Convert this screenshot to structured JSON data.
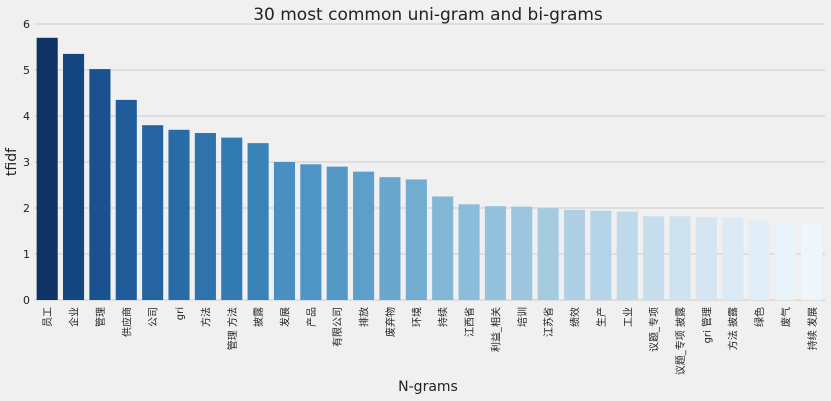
{
  "chart_data": {
    "type": "bar",
    "title": "30 most common uni-gram and bi-grams",
    "xlabel": "N-grams",
    "ylabel": "tfidf",
    "ylim": [
      0,
      6
    ],
    "yticks": [
      0,
      1,
      2,
      3,
      4,
      5,
      6
    ],
    "grid": true,
    "categories": [
      "员工",
      "企业",
      "管理",
      "供应商",
      "公司",
      "gri",
      "方法",
      "管理 方法",
      "披露",
      "发展",
      "产品",
      "有限公司",
      "排放",
      "废弃物",
      "环境",
      "持续",
      "江西省",
      "利益_相关",
      "培训",
      "江苏省",
      "绩效",
      "生产",
      "工业",
      "议题_专项",
      "议题_专项 披露",
      "gri 管理",
      "方法 披露",
      "绿色",
      "废气",
      "持续 发展"
    ],
    "values": [
      5.7,
      5.35,
      5.02,
      4.35,
      3.8,
      3.7,
      3.63,
      3.53,
      3.41,
      3.0,
      2.95,
      2.9,
      2.79,
      2.67,
      2.62,
      2.25,
      2.08,
      2.04,
      2.03,
      2.0,
      1.96,
      1.94,
      1.92,
      1.82,
      1.82,
      1.8,
      1.79,
      1.72,
      1.68,
      1.67
    ],
    "colors": [
      "#0e3364",
      "#13467f",
      "#1a528f",
      "#1f5c99",
      "#2564a0",
      "#296ba6",
      "#2e73ab",
      "#327bb2",
      "#3982b7",
      "#4a8fc1",
      "#4e94c4",
      "#5499c6",
      "#5d9fca",
      "#6aa7cd",
      "#72acd0",
      "#82b7d6",
      "#8bbcda",
      "#94c1dc",
      "#9dc6de",
      "#a5cbe1",
      "#aecfe4",
      "#b6d4e7",
      "#bed9ea",
      "#c7deed",
      "#cee2ef",
      "#d5e6f2",
      "#dbeaf4",
      "#e2eef7",
      "#e8f2f9",
      "#eef6fc"
    ]
  }
}
